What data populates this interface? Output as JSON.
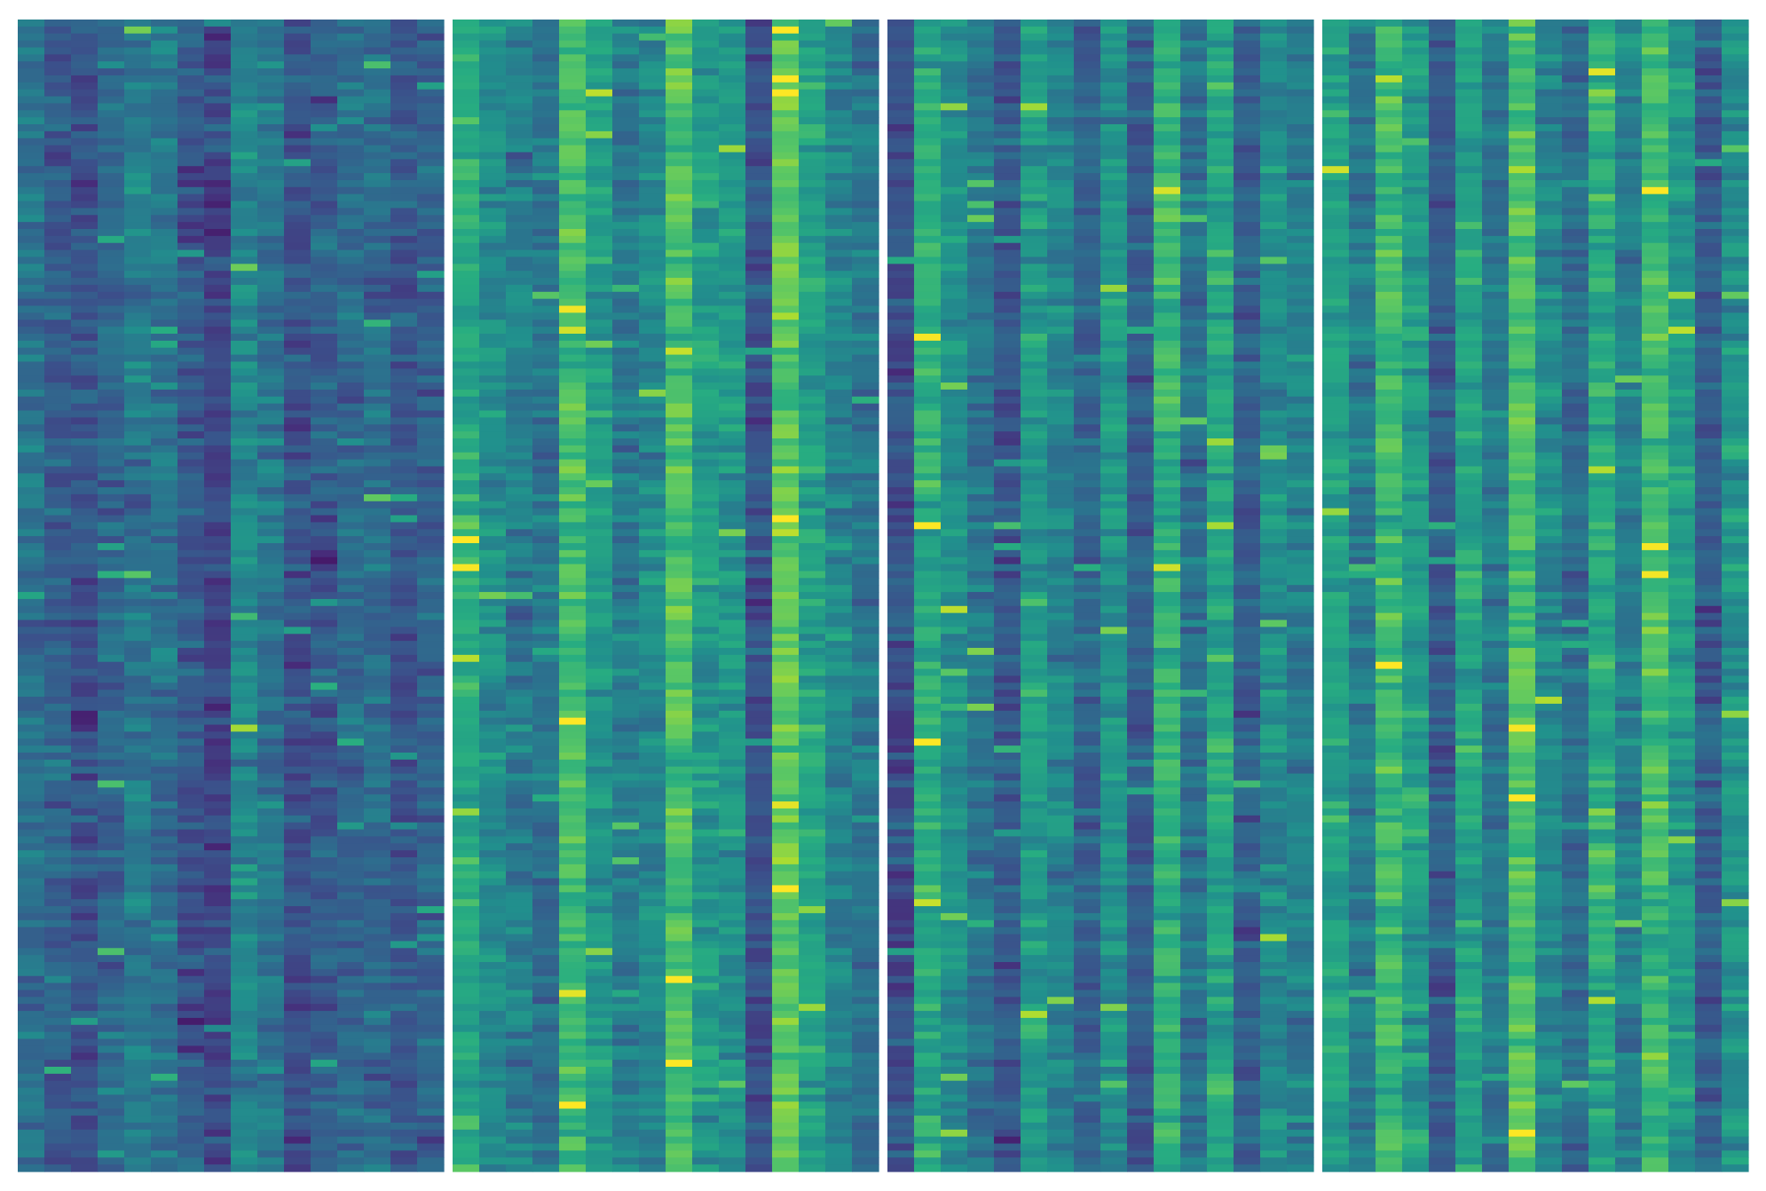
{
  "chart_data": {
    "type": "heatmap",
    "colormap": "viridis",
    "color_range": [
      0,
      1
    ],
    "rows_per_panel": 165,
    "columns_per_panel": 16,
    "panels": [
      {
        "name": "",
        "column_means": [
          0.38,
          0.3,
          0.27,
          0.34,
          0.42,
          0.38,
          0.28,
          0.22,
          0.46,
          0.4,
          0.26,
          0.3,
          0.34,
          0.36,
          0.28,
          0.32
        ]
      },
      {
        "name": "",
        "column_means": [
          0.62,
          0.5,
          0.44,
          0.38,
          0.7,
          0.55,
          0.42,
          0.48,
          0.72,
          0.56,
          0.52,
          0.26,
          0.76,
          0.58,
          0.46,
          0.4
        ]
      },
      {
        "name": "",
        "column_means": [
          0.26,
          0.62,
          0.5,
          0.4,
          0.28,
          0.56,
          0.46,
          0.34,
          0.52,
          0.3,
          0.66,
          0.38,
          0.6,
          0.32,
          0.5,
          0.44
        ]
      },
      {
        "name": "",
        "column_means": [
          0.58,
          0.42,
          0.68,
          0.56,
          0.3,
          0.6,
          0.4,
          0.72,
          0.48,
          0.36,
          0.62,
          0.44,
          0.7,
          0.54,
          0.3,
          0.52
        ]
      }
    ]
  }
}
